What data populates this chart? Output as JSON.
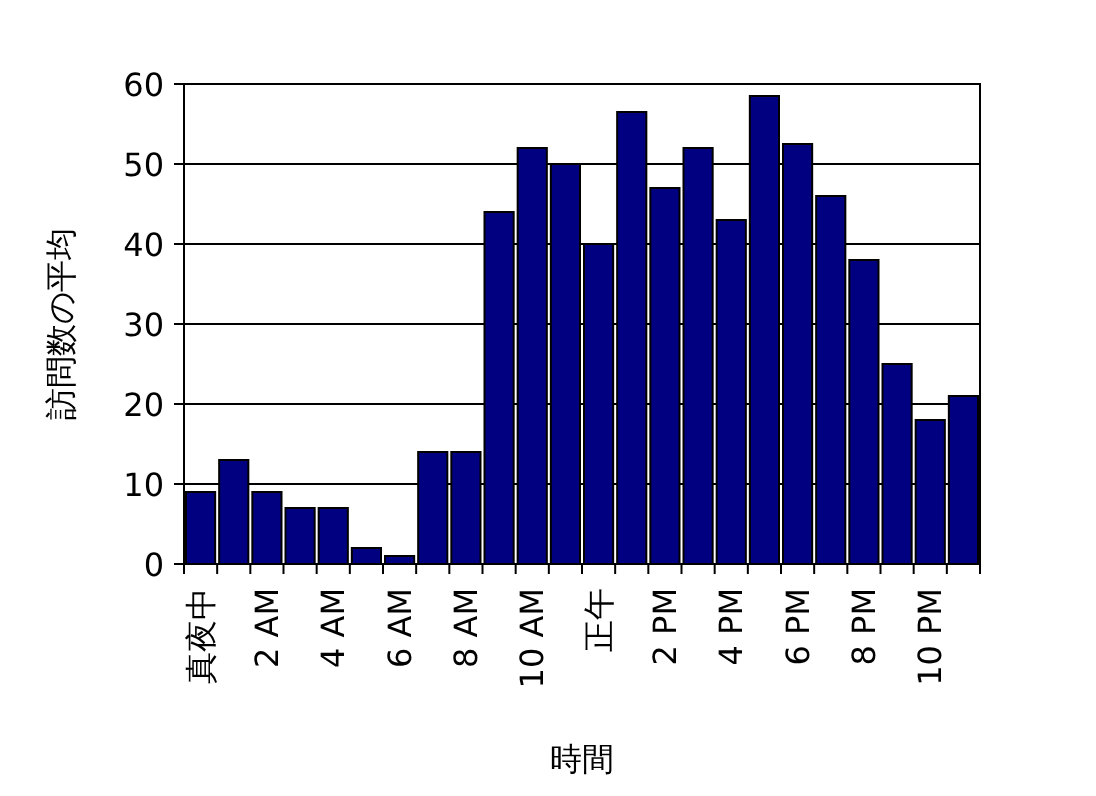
{
  "chart_data": {
    "type": "bar",
    "xlabel": "時間",
    "ylabel": "訪問数の平均",
    "categories": [
      "真夜中",
      null,
      "2 AM",
      null,
      "4 AM",
      null,
      "6 AM",
      null,
      "8 AM",
      null,
      "10 AM",
      null,
      "正午",
      null,
      "2 PM",
      null,
      "4 PM",
      null,
      "6 PM",
      null,
      "8 PM",
      null,
      "10 PM",
      null
    ],
    "values": [
      9,
      13,
      9,
      7,
      7,
      2,
      1,
      14,
      14,
      44,
      52,
      50,
      40,
      56.5,
      47,
      52,
      43,
      58.5,
      52.5,
      46,
      38,
      25,
      18,
      21
    ],
    "color": "#000080",
    "ylim": [
      0,
      60
    ],
    "yticks": [
      0,
      10,
      20,
      30,
      40,
      50,
      60
    ],
    "grid": "y"
  }
}
